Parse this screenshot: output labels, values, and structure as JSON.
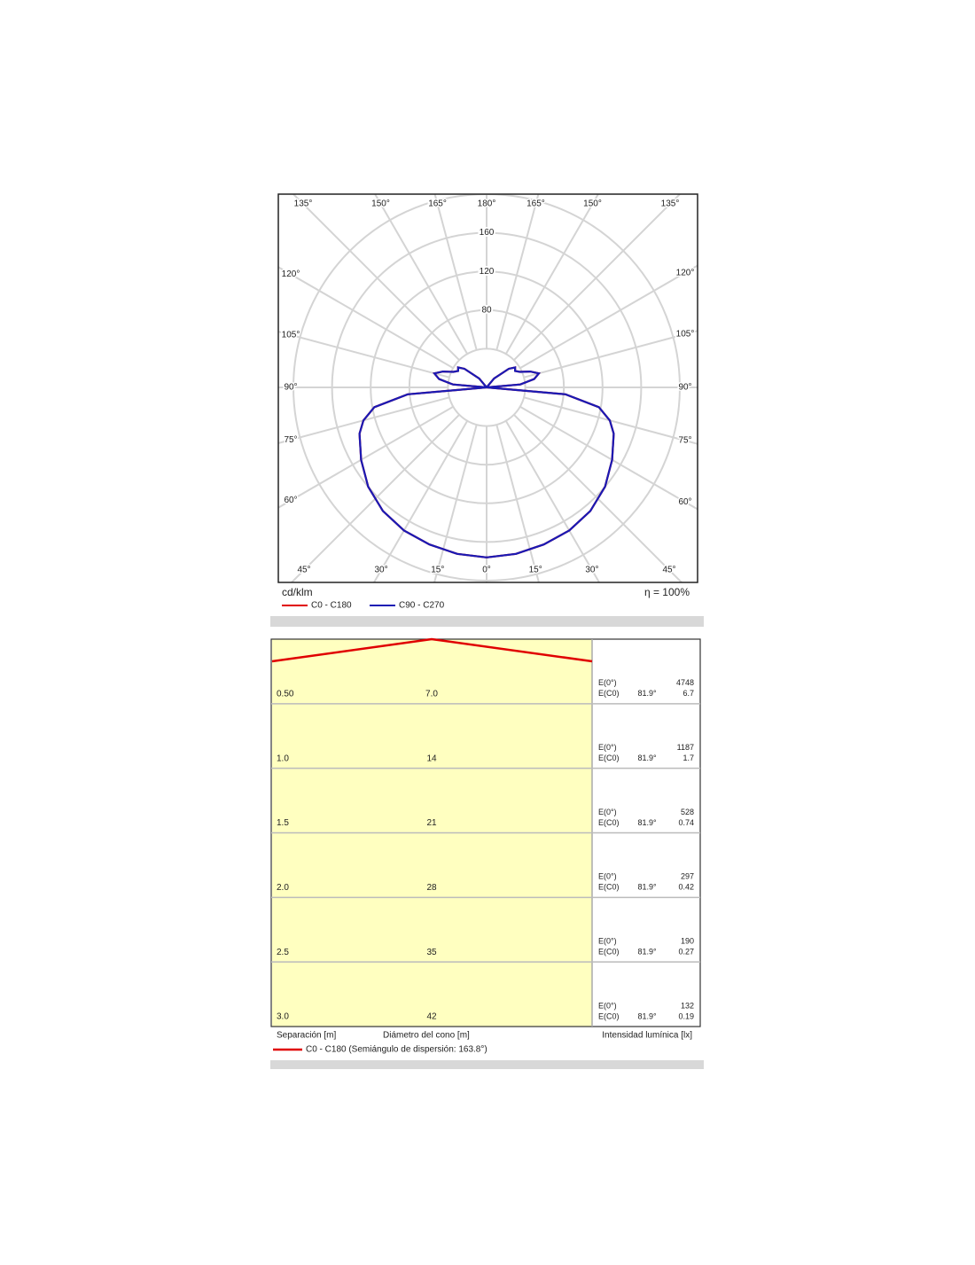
{
  "chart_data": {
    "type": "polar",
    "unit": "cd/klm",
    "efficiency": "η = 100%",
    "rlim": [
      0,
      200
    ],
    "rticks": [
      {
        "value": 40,
        "label": null
      },
      80,
      120,
      160,
      {
        "value": 200,
        "label": null
      }
    ],
    "xticks": [
      {
        "value": 0,
        "label": "0°"
      },
      {
        "value": 15,
        "label": "15°"
      },
      {
        "value": 30,
        "label": "30°"
      },
      {
        "value": 45,
        "label": "45°"
      },
      {
        "value": 60,
        "label": "60°"
      },
      {
        "value": 75,
        "label": "75°"
      },
      {
        "value": 90,
        "label": "90°"
      },
      {
        "value": 105,
        "label": "105°"
      },
      {
        "value": 120,
        "label": "120°"
      },
      {
        "value": 135,
        "label": "135°"
      },
      {
        "value": 150,
        "label": "150°"
      },
      {
        "value": 165,
        "label": "165°"
      },
      {
        "value": 180,
        "label": "180°"
      }
    ],
    "x": [
      0,
      10,
      20,
      30,
      40,
      50,
      60,
      70,
      75,
      80,
      85,
      90,
      95,
      100,
      105,
      110,
      115,
      120,
      125,
      130,
      140,
      150,
      160,
      170,
      180
    ],
    "series": [
      {
        "name": "C0 - C180",
        "color": "#e00000",
        "values": [
          176,
          175,
          173,
          171,
          167,
          160,
          150,
          140,
          132,
          118,
          82,
          0,
          35,
          50,
          56,
          48,
          38,
          34,
          36,
          30,
          12,
          0,
          0,
          0,
          0
        ]
      },
      {
        "name": "C90 - C270",
        "color": "#1a1ab4",
        "values": [
          176,
          175,
          173,
          171,
          167,
          160,
          150,
          140,
          132,
          118,
          82,
          0,
          35,
          50,
          56,
          48,
          38,
          34,
          36,
          30,
          12,
          0,
          0,
          0,
          0
        ]
      }
    ]
  },
  "cone_diagram": {
    "rows": [
      {
        "separation": "0.50",
        "diameter": "7.0",
        "e0_label": "E(0°)",
        "ec0_label": "E(C0)",
        "ec0_angle": "81.9°",
        "e0": "4748",
        "ec0": "6.7"
      },
      {
        "separation": "1.0",
        "diameter": "14",
        "e0_label": "E(0°)",
        "ec0_label": "E(C0)",
        "ec0_angle": "81.9°",
        "e0": "1187",
        "ec0": "1.7"
      },
      {
        "separation": "1.5",
        "diameter": "21",
        "e0_label": "E(0°)",
        "ec0_label": "E(C0)",
        "ec0_angle": "81.9°",
        "e0": "528",
        "ec0": "0.74"
      },
      {
        "separation": "2.0",
        "diameter": "28",
        "e0_label": "E(0°)",
        "ec0_label": "E(C0)",
        "ec0_angle": "81.9°",
        "e0": "297",
        "ec0": "0.42"
      },
      {
        "separation": "2.5",
        "diameter": "35",
        "e0_label": "E(0°)",
        "ec0_label": "E(C0)",
        "ec0_angle": "81.9°",
        "e0": "190",
        "ec0": "0.27"
      },
      {
        "separation": "3.0",
        "diameter": "42",
        "e0_label": "E(0°)",
        "ec0_label": "E(C0)",
        "ec0_angle": "81.9°",
        "e0": "132",
        "ec0": "0.19"
      }
    ],
    "footer": {
      "separation": "Separación [m]",
      "diameter": "Diámetro del cono [m]",
      "intensity": "Intensidad lumínica [lx]"
    },
    "legend": "C0 - C180 (Semiángulo de dispersión: 163.8°)"
  }
}
